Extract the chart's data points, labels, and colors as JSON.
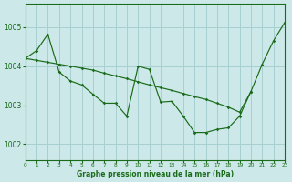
{
  "title": "Graphe pression niveau de la mer (hPa)",
  "bg_color": "#cce8e8",
  "line_color": "#1a6b1a",
  "grid_color": "#a8d0d0",
  "xlim": [
    0,
    23
  ],
  "ylim": [
    1001.6,
    1005.6
  ],
  "yticks": [
    1002,
    1003,
    1004,
    1005
  ],
  "xticks": [
    0,
    1,
    2,
    3,
    4,
    5,
    6,
    7,
    8,
    9,
    10,
    11,
    12,
    13,
    14,
    15,
    16,
    17,
    18,
    19,
    20,
    21,
    22,
    23
  ],
  "series_straight_x": [
    0,
    1,
    2,
    3,
    4,
    5,
    6,
    7,
    8,
    9,
    10,
    11,
    12,
    13,
    14,
    15,
    16,
    17,
    18,
    19,
    20,
    21,
    22,
    23
  ],
  "series_straight_y": [
    1004.2,
    1004.15,
    1004.1,
    1004.05,
    1004.0,
    1003.95,
    1003.9,
    1003.82,
    1003.75,
    1003.68,
    1003.6,
    1003.52,
    1003.45,
    1003.38,
    1003.3,
    1003.22,
    1003.15,
    1003.05,
    1002.95,
    1002.82,
    1003.35,
    1004.05,
    1004.65,
    1005.12
  ],
  "series_zigzag_x": [
    0,
    1,
    2,
    3,
    4,
    5,
    6,
    7,
    8,
    9,
    10,
    11,
    12,
    13,
    14,
    15,
    16,
    17,
    18,
    19,
    20
  ],
  "series_zigzag_y": [
    1004.2,
    1004.4,
    1004.82,
    1003.85,
    1003.62,
    1003.52,
    1003.28,
    1003.05,
    1003.05,
    1002.72,
    1004.0,
    1003.92,
    1003.08,
    1003.1,
    1002.72,
    1002.3,
    1002.3,
    1002.38,
    1002.42,
    1002.72,
    1003.35
  ]
}
